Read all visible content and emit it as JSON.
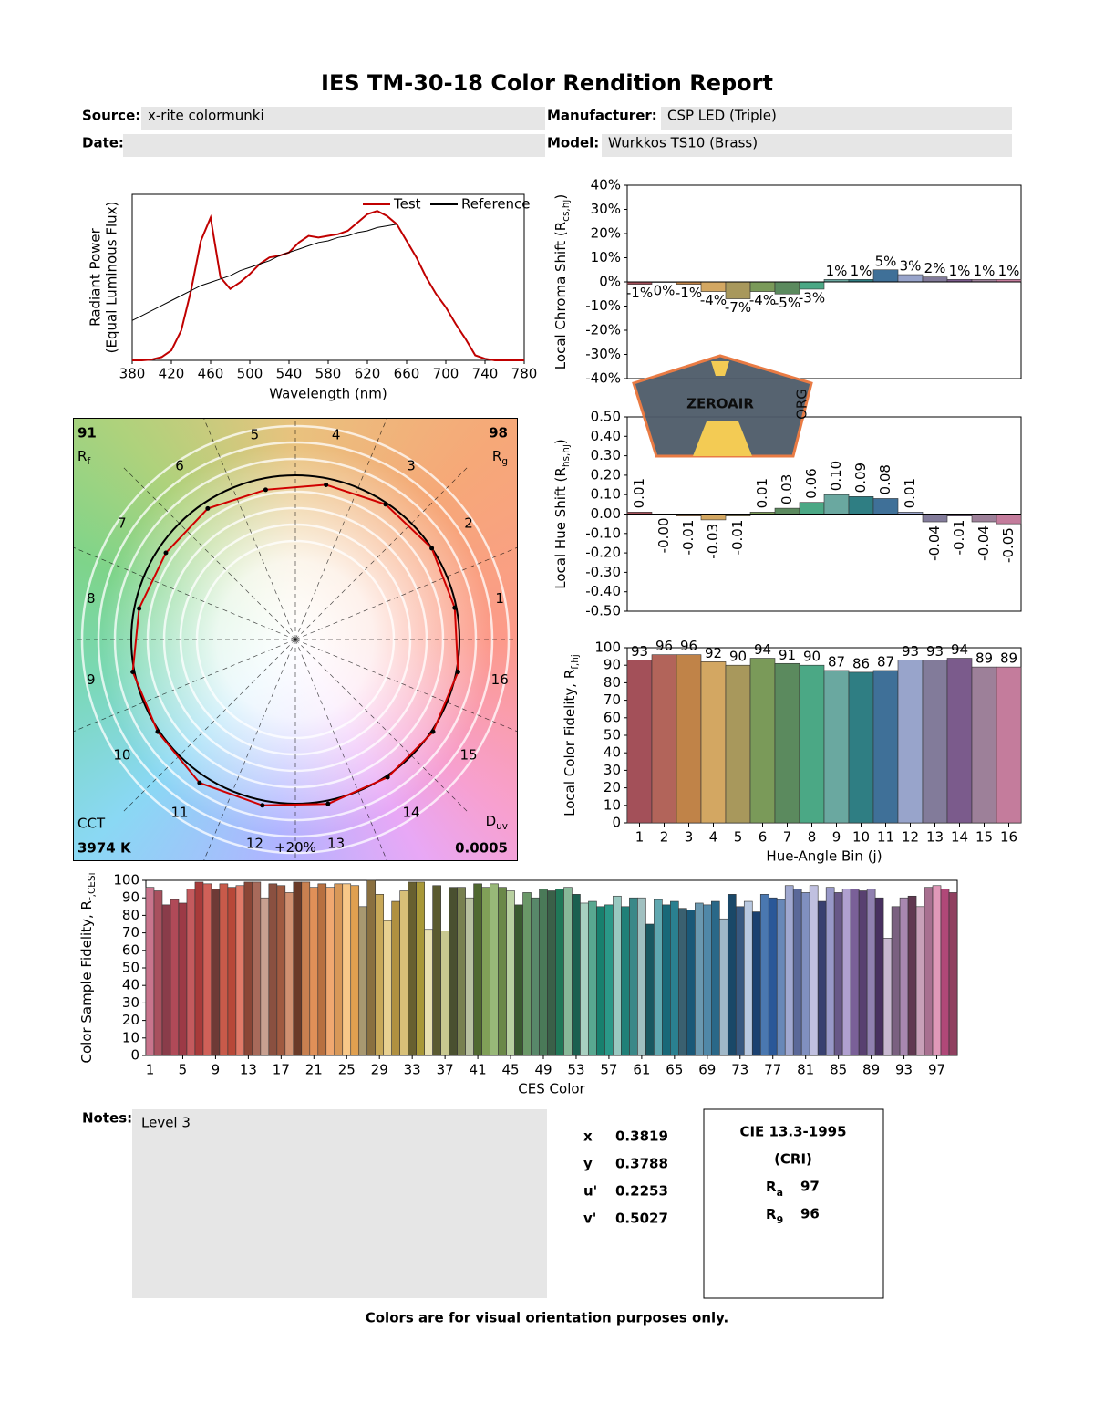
{
  "header": {
    "title": "IES TM-30-18 Color Rendition Report",
    "source_label": "Source:",
    "source": "x-rite colormunki",
    "manufacturer_label": "Manufacturer:",
    "manufacturer": "CSP LED (Triple)",
    "date_label": "Date:",
    "model_label": "Model:",
    "model": "Wurkkos TS10 (Brass)"
  },
  "logo": {
    "text": "ZEROAIR",
    "suffix": "ORG"
  },
  "chart_data": [
    {
      "type": "line",
      "x_label": "Wavelength (nm)",
      "y_label": "Radiant Power",
      "y_label_2": "(Equal Luminous Flux)",
      "legend": "upper right",
      "x": [
        380,
        390,
        400,
        410,
        420,
        430,
        440,
        450,
        460,
        470,
        480,
        490,
        500,
        510,
        520,
        530,
        540,
        550,
        560,
        570,
        580,
        590,
        600,
        610,
        620,
        630,
        640,
        650,
        660,
        670,
        680,
        690,
        700,
        710,
        720,
        730,
        740,
        750,
        760,
        770,
        780
      ],
      "series": [
        {
          "name": "Test",
          "color": "#c00000",
          "values": [
            0,
            0,
            0.005,
            0.02,
            0.06,
            0.18,
            0.42,
            0.72,
            0.86,
            0.5,
            0.43,
            0.47,
            0.52,
            0.58,
            0.62,
            0.63,
            0.65,
            0.71,
            0.75,
            0.74,
            0.75,
            0.76,
            0.78,
            0.83,
            0.88,
            0.9,
            0.87,
            0.82,
            0.72,
            0.62,
            0.5,
            0.4,
            0.32,
            0.22,
            0.13,
            0.03,
            0.01,
            0,
            0,
            0,
            0
          ]
        },
        {
          "name": "Reference",
          "color": "#000000",
          "values": [
            0.24,
            0.27,
            0.3,
            0.33,
            0.36,
            0.39,
            0.42,
            0.45,
            0.47,
            0.49,
            0.51,
            0.54,
            0.56,
            0.58,
            0.6,
            0.63,
            0.65,
            0.67,
            0.69,
            0.71,
            0.72,
            0.74,
            0.75,
            0.77,
            0.78,
            0.8,
            0.81,
            0.82,
            null,
            null,
            null,
            null,
            null,
            null,
            null,
            null,
            null,
            null,
            null,
            null,
            null
          ]
        }
      ],
      "xlim": [
        380,
        780
      ],
      "xticks": [
        380,
        420,
        460,
        500,
        540,
        580,
        620,
        660,
        700,
        740,
        780
      ],
      "ylim": [
        0,
        1
      ]
    },
    {
      "type": "bar",
      "y_label": "Local Chroma Shift (R",
      "y_label_sub": "cs,hj",
      "y_label_end": ")",
      "values": [
        -1,
        0,
        -1,
        -4,
        -7,
        -4,
        -5,
        -3,
        1,
        1,
        5,
        3,
        2,
        1,
        1,
        1
      ],
      "value_labels": [
        "-1%",
        "0%",
        "-1%",
        "-4%",
        "-7%",
        "-4%",
        "-5%",
        "-3%",
        "1%",
        "1%",
        "5%",
        "3%",
        "2%",
        "1%",
        "1%",
        "1%"
      ],
      "colors": [
        "#a35059",
        "#b2645a",
        "#c08348",
        "#d3a762",
        "#a8985c",
        "#7a9a59",
        "#5b8a5e",
        "#4ba885",
        "#6aa8a0",
        "#2f7e83",
        "#3f7098",
        "#98a4cb",
        "#827b9a",
        "#7b5b8c",
        "#9d8099",
        "#c47c9c"
      ],
      "ylim": [
        -40,
        40
      ],
      "yticks": [
        {
          "value": 40,
          "label": "40%"
        },
        {
          "value": 30,
          "label": "30%"
        },
        {
          "value": 20,
          "label": "20%"
        },
        {
          "value": 10,
          "label": "10%"
        },
        {
          "value": 0,
          "label": "0%"
        },
        {
          "value": -10,
          "label": "-10%"
        },
        {
          "value": -20,
          "label": "-20%"
        },
        {
          "value": -30,
          "label": "-30%"
        },
        {
          "value": -40,
          "label": "-40%"
        }
      ]
    },
    {
      "type": "bar",
      "y_label": "Local Hue Shift (R",
      "y_label_sub": "hs,hj",
      "y_label_end": ")",
      "label_rotation": 90,
      "values": [
        0.01,
        0,
        -0.01,
        -0.03,
        -0.01,
        0.01,
        0.03,
        0.06,
        0.1,
        0.09,
        0.08,
        0.01,
        -0.04,
        -0.01,
        -0.04,
        -0.05
      ],
      "value_labels": [
        "0.01",
        "-0.00",
        "-0.01",
        "-0.03",
        "-0.01",
        "0.01",
        "0.03",
        "0.06",
        "0.10",
        "0.09",
        "0.08",
        "0.01",
        "-0.04",
        "-0.01",
        "-0.04",
        "-0.05"
      ],
      "colors": [
        "#a35059",
        "#b2645a",
        "#c08348",
        "#d3a762",
        "#a8985c",
        "#7a9a59",
        "#5b8a5e",
        "#4ba885",
        "#6aa8a0",
        "#2f7e83",
        "#3f7098",
        "#98a4cb",
        "#827b9a",
        "#7b5b8c",
        "#9d8099",
        "#c47c9c"
      ],
      "ylim": [
        -0.5,
        0.5
      ],
      "yticks": [
        {
          "value": 0.5,
          "label": "0.50"
        },
        {
          "value": 0.4,
          "label": "0.40"
        },
        {
          "value": 0.3,
          "label": "0.30"
        },
        {
          "value": 0.2,
          "label": "0.20"
        },
        {
          "value": 0.1,
          "label": "0.10"
        },
        {
          "value": 0,
          "label": "0.00"
        },
        {
          "value": -0.1,
          "label": "-0.10"
        },
        {
          "value": -0.2,
          "label": "-0.20"
        },
        {
          "value": -0.3,
          "label": "-0.30"
        },
        {
          "value": -0.4,
          "label": "-0.40"
        },
        {
          "value": -0.5,
          "label": "-0.50"
        }
      ]
    },
    {
      "type": "bar",
      "y_label": "Local Color Fidelity, R",
      "y_label_sub": "f,hj",
      "x_label": "Hue-Angle Bin (j)",
      "data_labels": true,
      "categories": [
        1,
        2,
        3,
        4,
        5,
        6,
        7,
        8,
        9,
        10,
        11,
        12,
        13,
        14,
        15,
        16
      ],
      "values": [
        93,
        96,
        96,
        92,
        90,
        94,
        91,
        90,
        87,
        86,
        87,
        93,
        93,
        94,
        89,
        89
      ],
      "colors": [
        "#a35059",
        "#b2645a",
        "#c08348",
        "#d3a762",
        "#a8985c",
        "#7a9a59",
        "#5b8a5e",
        "#4ba885",
        "#6aa8a0",
        "#2f7e83",
        "#3f7098",
        "#98a4cb",
        "#827b9a",
        "#7b5b8c",
        "#9d8099",
        "#c47c9c"
      ],
      "ylim": [
        0,
        100
      ],
      "yticks": [
        0,
        10,
        20,
        30,
        40,
        50,
        60,
        70,
        80,
        90,
        100
      ]
    },
    {
      "type": "bar",
      "y_label": "Color Sample Fidelity, R",
      "y_label_sub": "f,CESi",
      "x_label": "CES Color",
      "categories": [
        1,
        null,
        null,
        null,
        5,
        null,
        null,
        null,
        9,
        null,
        null,
        null,
        13,
        null,
        null,
        null,
        17,
        null,
        null,
        null,
        21,
        null,
        null,
        null,
        25,
        null,
        null,
        null,
        29,
        null,
        null,
        null,
        33,
        null,
        null,
        null,
        37,
        null,
        null,
        null,
        41,
        null,
        null,
        null,
        45,
        null,
        null,
        null,
        49,
        null,
        null,
        null,
        53,
        null,
        null,
        null,
        57,
        null,
        null,
        null,
        61,
        null,
        null,
        null,
        65,
        null,
        null,
        null,
        69,
        null,
        null,
        null,
        73,
        null,
        null,
        null,
        77,
        null,
        null,
        null,
        81,
        null,
        null,
        null,
        85,
        null,
        null,
        null,
        89,
        null,
        null,
        null,
        93,
        null,
        null,
        null,
        97,
        null,
        null
      ],
      "values": [
        96,
        94,
        86,
        89,
        87,
        95,
        99,
        98,
        95,
        98,
        96,
        97,
        99,
        99,
        90,
        98,
        97,
        93,
        99,
        99,
        96,
        98,
        96,
        98,
        98,
        97,
        85,
        100,
        92,
        77,
        88,
        94,
        99,
        99,
        72,
        97,
        71,
        96,
        96,
        90,
        98,
        96,
        98,
        96,
        94,
        86,
        93,
        90,
        95,
        94,
        95,
        96,
        92,
        87,
        88,
        85,
        86,
        91,
        85,
        90,
        90,
        75,
        89,
        86,
        88,
        84,
        83,
        87,
        86,
        88,
        78,
        92,
        85,
        88,
        82,
        92,
        90,
        89,
        97,
        95,
        93,
        97,
        88,
        96,
        93,
        95,
        95,
        94,
        95,
        90,
        67,
        85,
        90,
        91,
        85,
        96,
        97,
        95,
        93
      ],
      "colors": [
        "#c8748c",
        "#a8505e",
        "#8a3c4a",
        "#b04a58",
        "#9c3a46",
        "#c45a5e",
        "#a83a3a",
        "#d06058",
        "#6e3a36",
        "#c85a4a",
        "#b84838",
        "#e07a68",
        "#8a4636",
        "#a86a5a",
        "#c8a090",
        "#8a5040",
        "#a05a40",
        "#d09070",
        "#6a3a28",
        "#c88050",
        "#e09058",
        "#b87040",
        "#f0a870",
        "#d89858",
        "#f8c888",
        "#e0a050",
        "#a89870",
        "#8a7040",
        "#c8a858",
        "#e8d090",
        "#b09040",
        "#d8c078",
        "#686030",
        "#a89838",
        "#e8e0b0",
        "#5a5a30",
        "#c8c890",
        "#4a5030",
        "#788050",
        "#b8c0a0",
        "#506830",
        "#80a058",
        "#98b878",
        "#6a8848",
        "#b8d0a0",
        "#3a5a30",
        "#6a9868",
        "#58886a",
        "#4a7a58",
        "#3a6048",
        "#207858",
        "#88b898",
        "#1a6050",
        "#a8d0c0",
        "#58a890",
        "#18806e",
        "#2a9888",
        "#98c8c0",
        "#208078",
        "#3a8888",
        "#a0c0c0",
        "#1a5860",
        "#60a8b0",
        "#186878",
        "#2a8090",
        "#3a6070",
        "#1a5878",
        "#6a98b0",
        "#5088a8",
        "#2a6888",
        "#a0b8c8",
        "#1a4868",
        "#385880",
        "#b8c8e0",
        "#1a4070",
        "#4a78b0",
        "#2a5898",
        "#6888b8",
        "#a0a8d0",
        "#5a6898",
        "#8090c0",
        "#c0c0e0",
        "#384070",
        "#9898c8",
        "#685888",
        "#b0a0d0",
        "#7a6098",
        "#584070",
        "#9080b0",
        "#483060",
        "#c8b8d0",
        "#7a6080",
        "#a888b0",
        "#603850",
        "#c8a0b8",
        "#a87090",
        "#e098b8",
        "#b04878",
        "#904060"
      ],
      "ylim": [
        0,
        100
      ],
      "yticks": [
        0,
        10,
        20,
        30,
        40,
        50,
        60,
        70,
        80,
        90,
        100
      ]
    },
    {
      "type": "vector",
      "color": "#d00000",
      "bin_labels": [
        1,
        2,
        3,
        4,
        5,
        6,
        7,
        8,
        9,
        10,
        11,
        12,
        13,
        14,
        15,
        16
      ],
      "ring_label": "+20%",
      "test_x": [
        0.971,
        0.831,
        0.55,
        0.187,
        -0.181,
        -0.534,
        -0.789,
        -0.952,
        -0.991,
        -0.839,
        -0.584,
        -0.201,
        0.199,
        0.562,
        0.839,
        0.991
      ],
      "test_y": [
        0.193,
        0.556,
        0.823,
        0.942,
        0.912,
        0.798,
        0.528,
        0.189,
        -0.197,
        -0.562,
        -0.873,
        -1.01,
        -1.001,
        -0.839,
        -0.562,
        -0.197
      ],
      "rf": 91,
      "rf_label": "R",
      "rf_sub": "f",
      "rg": 98,
      "rg_label": "R",
      "rg_sub": "g",
      "cct_label": "CCT",
      "cct": "3974 K",
      "duv_label": "D",
      "duv_sub": "uv",
      "duv": 0.0005
    }
  ],
  "notes": {
    "label": "Notes:",
    "text": "Level 3"
  },
  "chromaticity": {
    "rows": [
      [
        "x",
        0.3819
      ],
      [
        "y",
        0.3788
      ],
      [
        "u'",
        0.2253
      ],
      [
        "v'",
        0.5027
      ]
    ]
  },
  "cri": {
    "title": "CIE 13.3-1995",
    "subtitle": "(CRI)",
    "ra_label": "R",
    "ra_sub": "a",
    "ra": 97,
    "r9_label": "R",
    "r9_sub": "9",
    "r9": 96
  },
  "footer": "Colors are for visual orientation purposes only."
}
